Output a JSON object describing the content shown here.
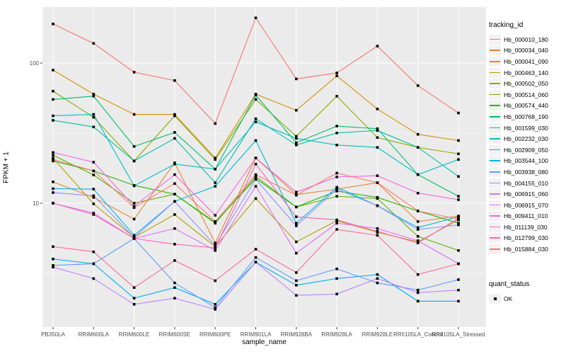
{
  "chart_data": {
    "type": "line",
    "title": "",
    "xlabel": "sample_name",
    "ylabel": "FPKM + 1",
    "y_scale": "log10",
    "y_ticks": [
      10,
      100
    ],
    "y_minor_ticks": [
      3.162,
      31.62
    ],
    "ylim": [
      1.3,
      251
    ],
    "grid": true,
    "panel_bg": "#ebebeb",
    "grid_color": "#ffffff",
    "point_color": "#000000",
    "legend_position": "right",
    "categories": [
      "PB350LA",
      "RRIM600LA",
      "RRIM600LE",
      "RRIM600SE",
      "RRIM600PE",
      "RRIM901LA",
      "RRIM928BA",
      "RRIM928LA",
      "RRIM928LE",
      "RRII105LA_Control",
      "RRII105LA_Stressed"
    ],
    "color_legend_title": "tracking_id",
    "shape_legend_title": "quant_status",
    "shape_legend_entries": [
      {
        "label": "OK"
      }
    ],
    "series": [
      {
        "name": "Hb_000010_180",
        "color": "#F8766D",
        "values": [
          190,
          138,
          86,
          75,
          37,
          210,
          77,
          85,
          132,
          69,
          44
        ]
      },
      {
        "name": "Hb_000034_040",
        "color": "#EA8331",
        "values": [
          14.2,
          11,
          7.7,
          19.4,
          5.2,
          21,
          11.5,
          12.6,
          14,
          7.4,
          8.1
        ]
      },
      {
        "name": "Hb_000041_090",
        "color": "#D89000",
        "values": [
          89,
          60,
          43,
          43,
          21,
          60,
          46,
          81,
          47,
          31,
          28
        ]
      },
      {
        "name": "Hb_000463_140",
        "color": "#B79F00",
        "values": [
          21,
          9.9,
          5.7,
          8.3,
          4.9,
          10.8,
          5.3,
          7.5,
          6.2,
          5.3,
          7.6
        ]
      },
      {
        "name": "Hb_000502_050",
        "color": "#8CAB00",
        "values": [
          63,
          41,
          20,
          42,
          20.5,
          55,
          30,
          58,
          29.4,
          25,
          22.5
        ]
      },
      {
        "name": "Hb_000514_060",
        "color": "#5EB300",
        "values": [
          22,
          15.9,
          10,
          11.6,
          7.2,
          15.5,
          9.4,
          11.2,
          10.8,
          5.8,
          4.6
        ]
      },
      {
        "name": "Hb_000574_440",
        "color": "#24B700",
        "values": [
          20,
          17,
          13.4,
          11.6,
          7.3,
          15,
          9.4,
          12.2,
          11,
          8.8,
          7.2
        ]
      },
      {
        "name": "Hb_000768_190",
        "color": "#00BE70",
        "values": [
          55,
          58,
          25.4,
          32,
          17.5,
          59,
          27,
          35.5,
          34,
          16,
          11.2
        ]
      },
      {
        "name": "Hb_001599_030",
        "color": "#00C1A3",
        "values": [
          39,
          35,
          20,
          29,
          14,
          40,
          26,
          31.7,
          33,
          25,
          15.5
        ]
      },
      {
        "name": "Hb_002232_030",
        "color": "#00BFC4",
        "values": [
          42,
          43,
          13.3,
          19,
          17.5,
          38,
          29,
          26,
          25,
          16,
          20.5
        ]
      },
      {
        "name": "Hb_002909_050",
        "color": "#00BAE0",
        "values": [
          12.7,
          12.6,
          5.9,
          10.3,
          13.2,
          28,
          7.2,
          13,
          9.6,
          6.7,
          8
        ]
      },
      {
        "name": "Hb_003544_100",
        "color": "#00B0F6",
        "values": [
          4.0,
          3.7,
          2.1,
          2.5,
          1.9,
          3.8,
          2.6,
          2.9,
          3.1,
          2.0,
          2.0
        ]
      },
      {
        "name": "Hb_003938_080",
        "color": "#619CFF",
        "values": [
          3.6,
          3.7,
          5.6,
          2.7,
          1.8,
          4.1,
          2.8,
          3.4,
          2.7,
          2.4,
          2.85
        ]
      },
      {
        "name": "Hb_004155_010",
        "color": "#8B93FF",
        "values": [
          11.9,
          11.3,
          5.7,
          10.3,
          5.0,
          14.8,
          6.9,
          12.6,
          9.6,
          6.5,
          7.0
        ]
      },
      {
        "name": "Hb_006915_060",
        "color": "#BF80FF",
        "values": [
          3.5,
          2.9,
          1.9,
          2.1,
          1.75,
          3.8,
          2.2,
          2.25,
          2.9,
          2.3,
          2.4
        ]
      },
      {
        "name": "Hb_006915_070",
        "color": "#E26EF7",
        "values": [
          10,
          8.5,
          5.6,
          6.6,
          4.6,
          13.2,
          4.4,
          7.2,
          6.6,
          5.4,
          3.7
        ]
      },
      {
        "name": "Hb_009411_010",
        "color": "#F763E0",
        "values": [
          23,
          19.6,
          9.5,
          16,
          8.2,
          21,
          12,
          15.4,
          15.7,
          11.8,
          10.6
        ]
      },
      {
        "name": "Hb_011139_030",
        "color": "#FF62BC",
        "values": [
          10,
          8.3,
          5.6,
          5.1,
          4.8,
          19,
          8,
          7.6,
          6.3,
          5.2,
          7.8
        ]
      },
      {
        "name": "Hb_012799_030",
        "color": "#FF6A98",
        "values": [
          4.9,
          4.5,
          2.5,
          3.9,
          2.8,
          4.7,
          3.2,
          6.5,
          5.9,
          3.1,
          3.7
        ]
      },
      {
        "name": "Hb_015884_030",
        "color": "#FC7873",
        "values": [
          20.5,
          17,
          9.3,
          13.8,
          7.4,
          16,
          11.4,
          16.4,
          14,
          8.8,
          7.7
        ]
      }
    ]
  }
}
